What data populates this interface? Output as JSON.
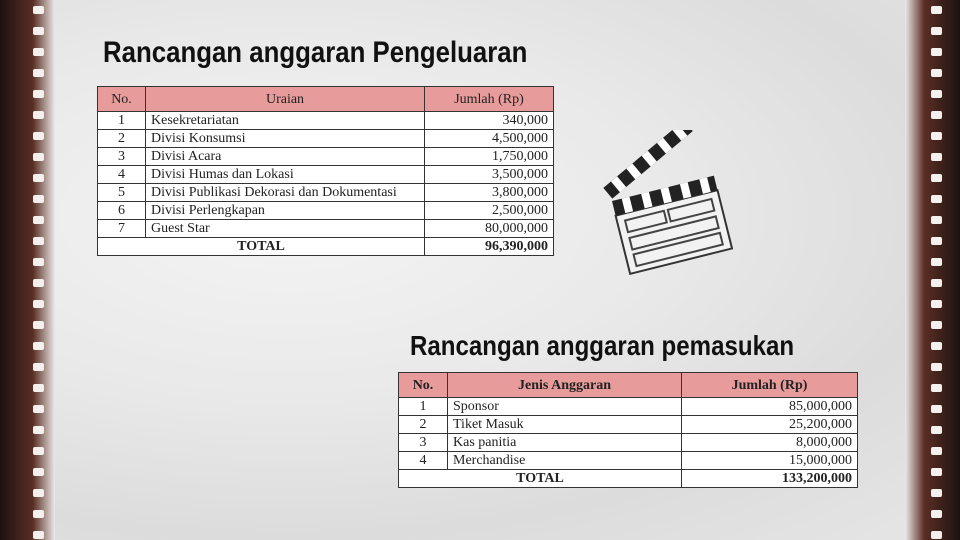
{
  "expense": {
    "title": "Rancangan anggaran Pengeluaran",
    "headers": [
      "No.",
      "Uraian",
      "Jumlah (Rp)"
    ],
    "rows": [
      [
        "1",
        "Kesekretariatan",
        "340,000"
      ],
      [
        "2",
        "Divisi Konsumsi",
        "4,500,000"
      ],
      [
        "3",
        "Divisi Acara",
        "1,750,000"
      ],
      [
        "4",
        "Divisi Humas dan Lokasi",
        "3,500,000"
      ],
      [
        "5",
        "Divisi Publikasi Dekorasi dan Dokumentasi",
        "3,800,000"
      ],
      [
        "6",
        "Divisi Perlengkapan",
        "2,500,000"
      ],
      [
        "7",
        "Guest Star",
        "80,000,000"
      ]
    ],
    "total_label": "TOTAL",
    "total": "96,390,000"
  },
  "income": {
    "title": "Rancangan anggaran pemasukan",
    "headers": [
      "No.",
      "Jenis Anggaran",
      "Jumlah (Rp)"
    ],
    "rows": [
      [
        "1",
        "Sponsor",
        "85,000,000"
      ],
      [
        "2",
        "Tiket Masuk",
        "25,200,000"
      ],
      [
        "3",
        "Kas panitia",
        "8,000,000"
      ],
      [
        "4",
        "Merchandise",
        "15,000,000"
      ]
    ],
    "total_label": "TOTAL",
    "total": "133,200,000"
  },
  "colors": {
    "header_fill": "#e89b9b",
    "film": "#2a1a17"
  },
  "icons": [
    "clapperboard-icon",
    "film-strip"
  ]
}
